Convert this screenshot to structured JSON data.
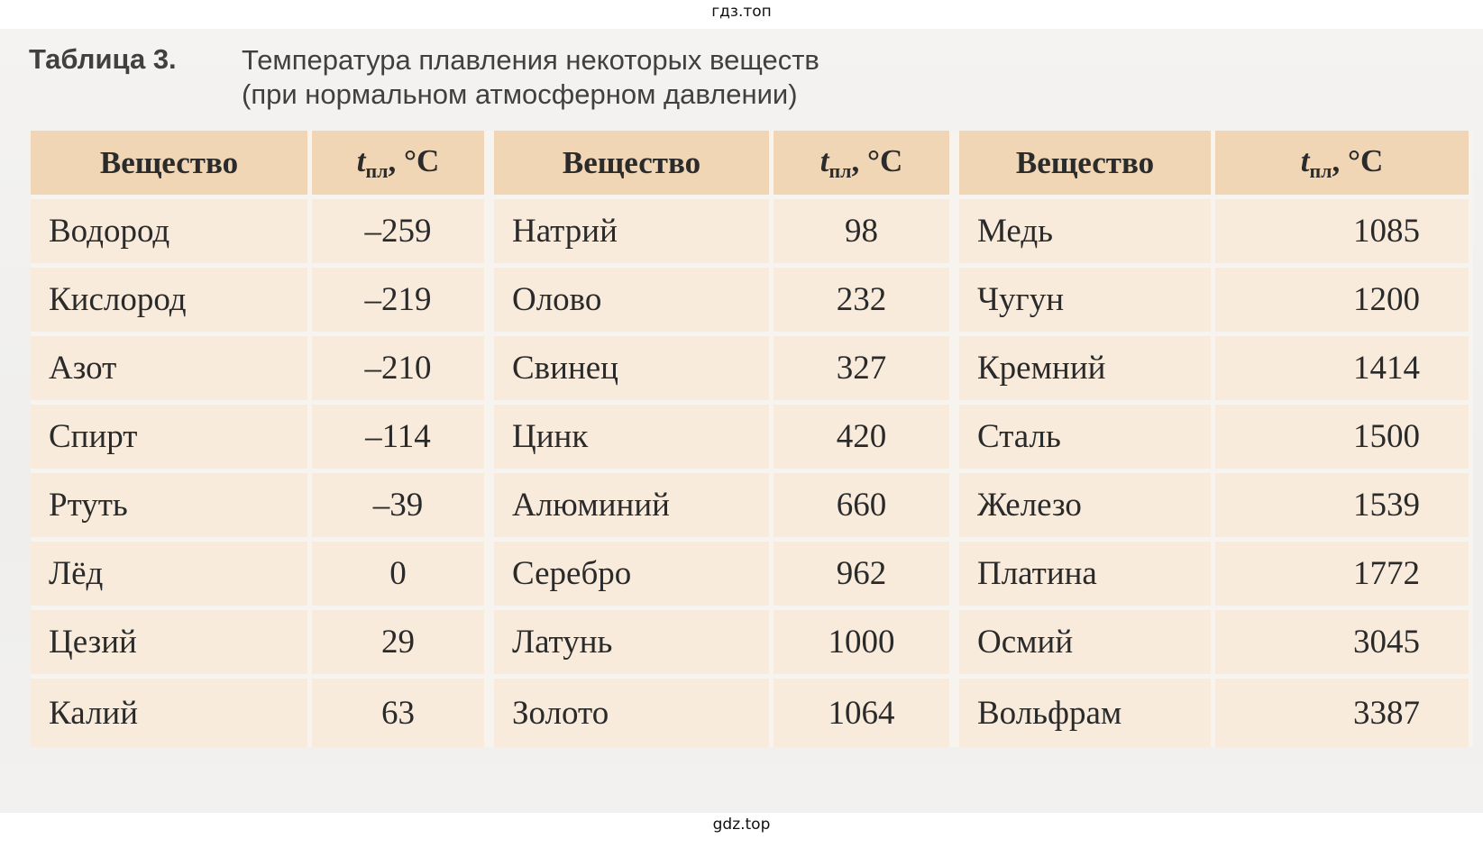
{
  "watermark_top": "гдз.топ",
  "watermark_bottom": "gdz.top",
  "caption": {
    "label": "Таблица 3.",
    "title_line1": "Температура плавления некоторых веществ",
    "title_line2": "(при нормальном атмосферном давлении)"
  },
  "table": {
    "header_substance": "Вещество",
    "header_temp_symbol": "t",
    "header_temp_subscript": "пл",
    "header_temp_unit": ", °C",
    "rows": [
      [
        {
          "name": "Водород",
          "t": "–259"
        },
        {
          "name": "Натрий",
          "t": "98"
        },
        {
          "name": "Медь",
          "t": "1085"
        }
      ],
      [
        {
          "name": "Кислород",
          "t": "–219"
        },
        {
          "name": "Олово",
          "t": "232"
        },
        {
          "name": "Чугун",
          "t": "1200"
        }
      ],
      [
        {
          "name": "Азот",
          "t": "–210"
        },
        {
          "name": "Свинец",
          "t": "327"
        },
        {
          "name": "Кремний",
          "t": "1414"
        }
      ],
      [
        {
          "name": "Спирт",
          "t": "–114"
        },
        {
          "name": "Цинк",
          "t": "420"
        },
        {
          "name": "Сталь",
          "t": "1500"
        }
      ],
      [
        {
          "name": "Ртуть",
          "t": "–39"
        },
        {
          "name": "Алюминий",
          "t": "660"
        },
        {
          "name": "Железо",
          "t": "1539"
        }
      ],
      [
        {
          "name": "Лёд",
          "t": "0"
        },
        {
          "name": "Серебро",
          "t": "962"
        },
        {
          "name": "Платина",
          "t": "1772"
        }
      ],
      [
        {
          "name": "Цезий",
          "t": "29"
        },
        {
          "name": "Латунь",
          "t": "1000"
        },
        {
          "name": "Осмий",
          "t": "3045"
        }
      ],
      [
        {
          "name": "Калий",
          "t": "63"
        },
        {
          "name": "Золото",
          "t": "1064"
        },
        {
          "name": "Вольфрам",
          "t": "3387"
        }
      ]
    ]
  },
  "colors": {
    "header_bg": "#f0d6b4",
    "cell_bg": "#f8ebdc",
    "separator": "#f7f4f0",
    "caption_text": "#404040"
  }
}
